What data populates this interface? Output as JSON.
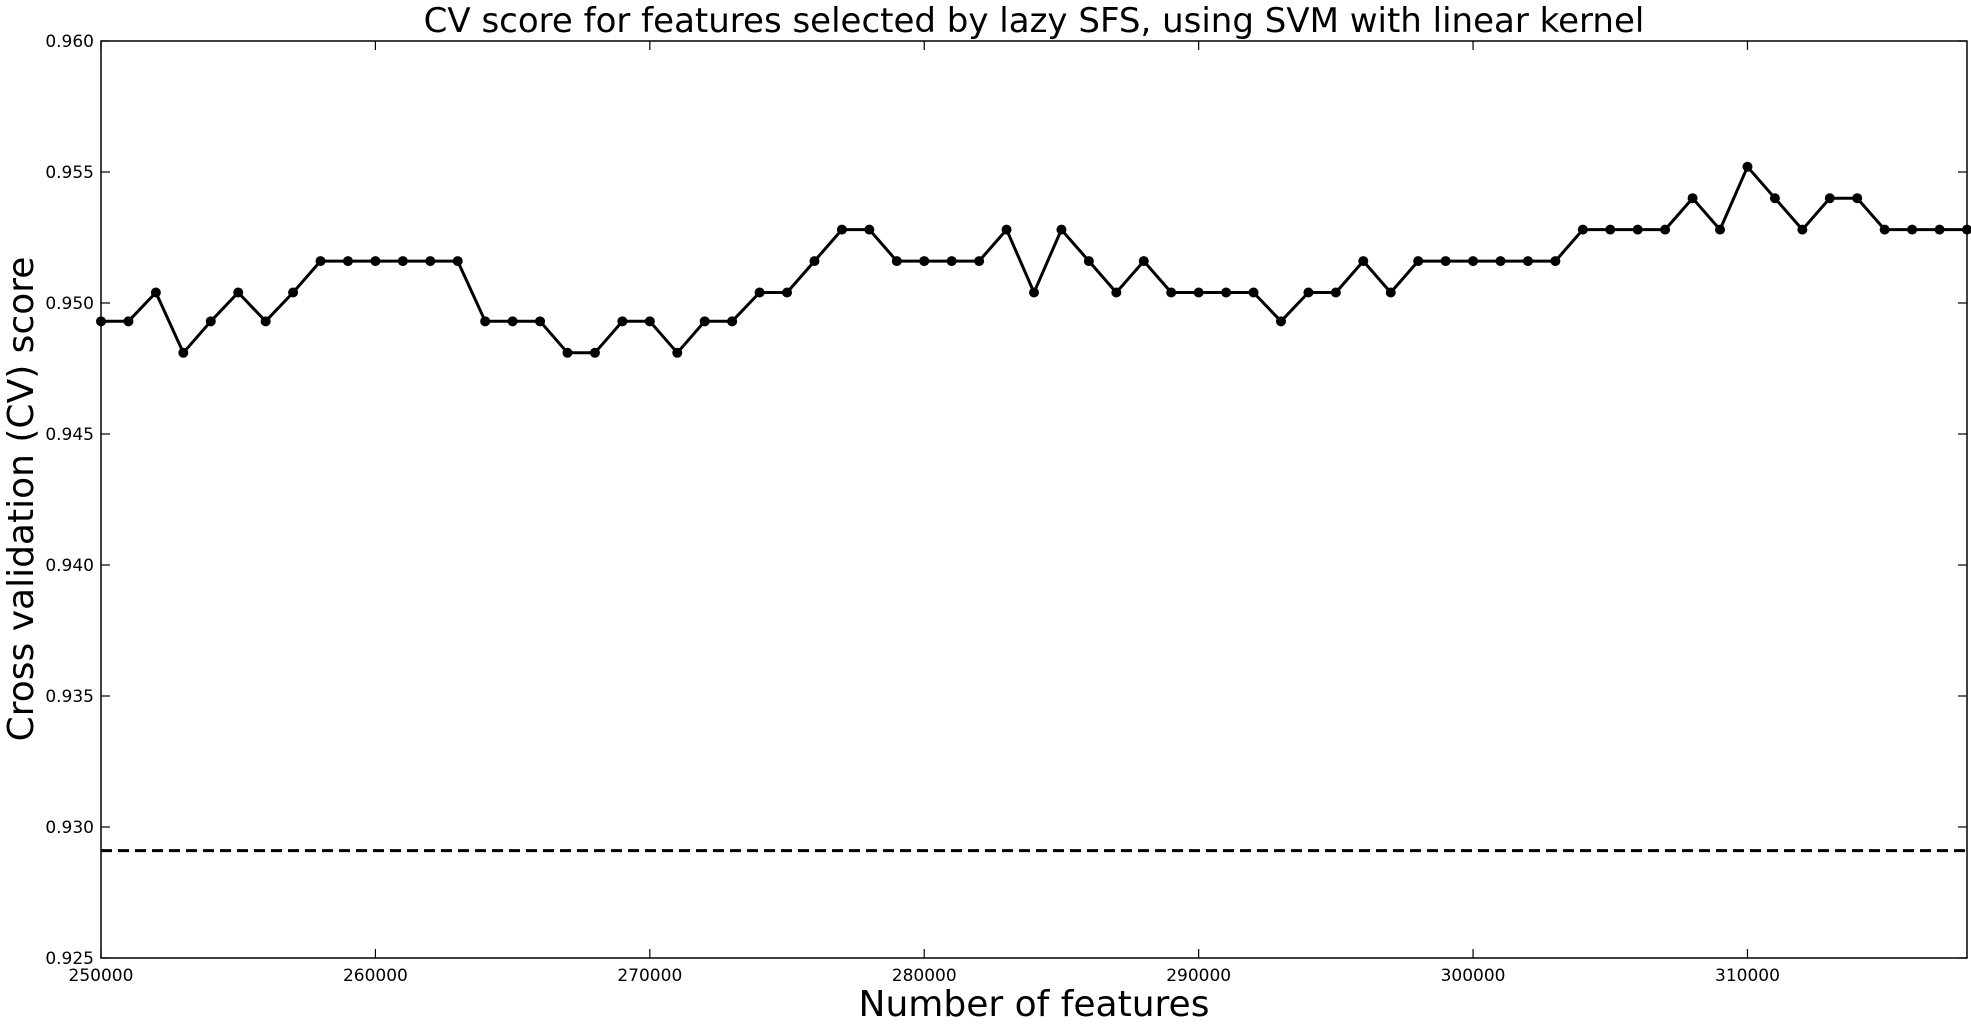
{
  "chart_data": {
    "type": "line",
    "title": "CV score for features selected by lazy SFS, using SVM with linear kernel",
    "xlabel": "Number of features",
    "ylabel": "Cross validation (CV) score",
    "xlim": [
      250000,
      318000
    ],
    "ylim": [
      0.925,
      0.96
    ],
    "x_ticks": [
      250000,
      260000,
      270000,
      280000,
      290000,
      300000,
      310000
    ],
    "x_tick_labels": [
      "250000",
      "260000",
      "270000",
      "280000",
      "290000",
      "300000",
      "310000"
    ],
    "y_ticks": [
      0.925,
      0.93,
      0.935,
      0.94,
      0.945,
      0.95,
      0.955,
      0.96
    ],
    "y_tick_labels": [
      "0.925",
      "0.930",
      "0.935",
      "0.940",
      "0.945",
      "0.950",
      "0.955",
      "0.960"
    ],
    "grid": false,
    "legend": "none",
    "series": [
      {
        "style": "solid-line-with-circle-markers",
        "color": "#000000",
        "x": [
          250000,
          251000,
          252000,
          253000,
          254000,
          255000,
          256000,
          257000,
          258000,
          259000,
          260000,
          261000,
          262000,
          263000,
          264000,
          265000,
          266000,
          267000,
          268000,
          269000,
          270000,
          271000,
          272000,
          273000,
          274000,
          275000,
          276000,
          277000,
          278000,
          279000,
          280000,
          281000,
          282000,
          283000,
          284000,
          285000,
          286000,
          287000,
          288000,
          289000,
          290000,
          291000,
          292000,
          293000,
          294000,
          295000,
          296000,
          297000,
          298000,
          299000,
          300000,
          301000,
          302000,
          303000,
          304000,
          305000,
          306000,
          307000,
          308000,
          309000,
          310000,
          311000,
          312000,
          313000,
          314000,
          315000,
          316000,
          317000,
          318000
        ],
        "values": [
          0.9493,
          0.9493,
          0.9504,
          0.9481,
          0.9493,
          0.9504,
          0.9493,
          0.9504,
          0.9516,
          0.9516,
          0.9516,
          0.9516,
          0.9516,
          0.9516,
          0.9493,
          0.9493,
          0.9493,
          0.9481,
          0.9481,
          0.9493,
          0.9493,
          0.9481,
          0.9493,
          0.9493,
          0.9504,
          0.9504,
          0.9516,
          0.9528,
          0.9528,
          0.9516,
          0.9516,
          0.9516,
          0.9516,
          0.9528,
          0.9504,
          0.9528,
          0.9516,
          0.9504,
          0.9516,
          0.9504,
          0.9504,
          0.9504,
          0.9504,
          0.9493,
          0.9504,
          0.9504,
          0.9516,
          0.9504,
          0.9516,
          0.9516,
          0.9516,
          0.9516,
          0.9516,
          0.9516,
          0.9528,
          0.9528,
          0.9528,
          0.9528,
          0.954,
          0.9528,
          0.9552,
          0.954,
          0.9528,
          0.954,
          0.954,
          0.9528,
          0.9528,
          0.9528,
          0.9528
        ]
      },
      {
        "style": "dashed-horizontal-line",
        "color": "#000000",
        "x": [
          250000,
          318000
        ],
        "values": [
          0.9291,
          0.9291
        ]
      }
    ]
  }
}
